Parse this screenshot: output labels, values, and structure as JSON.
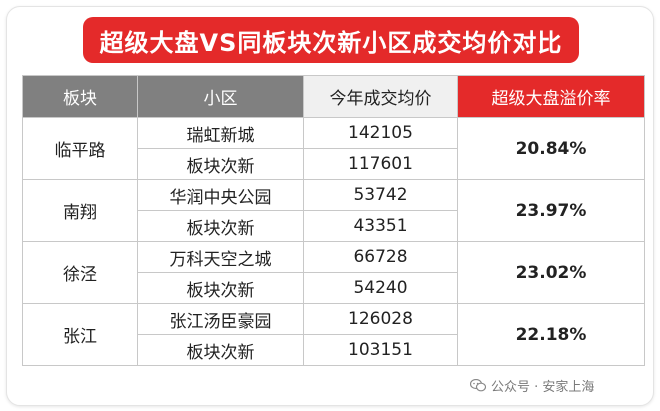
{
  "title": "超级大盘VS同板块次新小区成交均价对比",
  "headers": [
    "板块",
    "小区",
    "今年成交均价",
    "超级大盘溢价率"
  ],
  "groups": [
    {
      "district": "临平路",
      "rate": "20.84%",
      "rows": [
        {
          "community": "瑞虹新城",
          "price": "142105"
        },
        {
          "community": "板块次新",
          "price": "117601"
        }
      ]
    },
    {
      "district": "南翔",
      "rate": "23.97%",
      "rows": [
        {
          "community": "华润中央公园",
          "price": "53742"
        },
        {
          "community": "板块次新",
          "price": "43351"
        }
      ]
    },
    {
      "district": "徐泾",
      "rate": "23.02%",
      "rows": [
        {
          "community": "万科天空之城",
          "price": "66728"
        },
        {
          "community": "板块次新",
          "price": "54240"
        }
      ]
    },
    {
      "district": "张江",
      "rate": "22.18%",
      "rows": [
        {
          "community": "张江汤臣豪园",
          "price": "126028"
        },
        {
          "community": "板块次新",
          "price": "103151"
        }
      ]
    }
  ],
  "watermark": "公众号 · 安家上海",
  "colors": {
    "accent": "#e42a2a",
    "header_gray": "#808080",
    "rate_text": "#d6262a"
  }
}
